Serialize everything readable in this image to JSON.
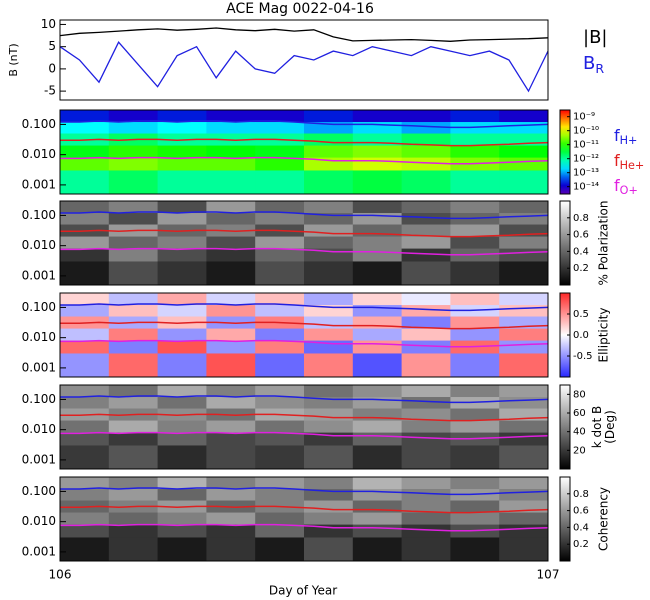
{
  "chart_data": [
    {
      "type": "line",
      "title": "ACE Mag 0022-04-16",
      "ylabel": "B (nT)",
      "x": [
        106,
        106.04,
        106.08,
        106.12,
        106.16,
        106.2,
        106.24,
        106.28,
        106.32,
        106.36,
        106.4,
        106.44,
        106.48,
        106.52,
        106.56,
        106.6,
        106.64,
        106.68,
        106.72,
        106.76,
        106.8,
        106.84,
        106.88,
        106.92,
        106.96,
        107
      ],
      "xlim": [
        106,
        107
      ],
      "ylim": [
        -7,
        11
      ],
      "yticks": [
        -5,
        0,
        5,
        10
      ],
      "series": [
        {
          "name": "|B|",
          "color": "#000000",
          "values": [
            7.5,
            8,
            8.2,
            8.5,
            8.8,
            9,
            8.7,
            8.9,
            9.2,
            8.8,
            8.6,
            8.9,
            8.5,
            8.8,
            7.2,
            6.3,
            6.4,
            6.5,
            6.6,
            6.4,
            6.2,
            6.5,
            6.6,
            6.7,
            6.8,
            7
          ]
        },
        {
          "name": "B",
          "subscript": "R",
          "color": "#2020e0",
          "values": [
            5,
            2,
            -3,
            6,
            1,
            -4,
            3,
            5,
            -2,
            4,
            0,
            -1,
            3,
            2,
            4,
            3,
            5,
            4,
            3,
            5,
            4,
            3,
            4,
            2,
            -5,
            4
          ]
        }
      ]
    },
    {
      "type": "spectrogram",
      "colormap": "rainbow",
      "clog": true,
      "clim": [
        3e-15,
        3e-09
      ],
      "cticks": [
        {
          "value": 1e-09,
          "label": "10⁻⁹"
        },
        {
          "value": 1e-10,
          "label": "10⁻¹⁰"
        },
        {
          "value": 1e-11,
          "label": "10⁻¹¹"
        },
        {
          "value": 1e-12,
          "label": "10⁻¹²"
        },
        {
          "value": 1e-13,
          "label": "10⁻¹³"
        },
        {
          "value": 1e-14,
          "label": "10⁻¹⁴"
        }
      ],
      "clabel": [],
      "z": [
        [
          2e-14,
          1e-14,
          2e-14,
          1e-14,
          1e-14,
          2e-14,
          1e-14,
          1e-14,
          2e-14,
          1e-14
        ],
        [
          3e-13,
          2e-13,
          3e-13,
          2e-13,
          2e-13,
          1e-13,
          2e-13,
          1e-13,
          2e-13,
          2e-13
        ],
        [
          1e-12,
          2e-12,
          1e-12,
          1e-12,
          1e-12,
          2e-12,
          1e-12,
          2e-12,
          1e-12,
          1e-12
        ],
        [
          5e-12,
          1e-11,
          8e-12,
          6e-12,
          5e-12,
          2e-11,
          3e-11,
          2e-11,
          1e-11,
          6e-12
        ],
        [
          2e-11,
          3e-11,
          2e-11,
          2e-11,
          1e-11,
          5e-11,
          8e-11,
          6e-11,
          3e-11,
          2e-11
        ],
        [
          1e-12,
          2e-12,
          1e-12,
          1e-12,
          1e-12,
          2e-12,
          3e-12,
          2e-12,
          1e-12,
          1e-12
        ]
      ]
    },
    {
      "type": "spectrogram",
      "colormap": "gray",
      "clog": false,
      "clim": [
        0,
        1
      ],
      "cticks": [
        0.2,
        0.4,
        0.6,
        0.8
      ],
      "clabel": [
        "% Polarization"
      ],
      "z": [
        [
          0.4,
          0.5,
          0.3,
          0.6,
          0.4,
          0.5,
          0.3,
          0.4,
          0.5,
          0.4
        ],
        [
          0.5,
          0.3,
          0.6,
          0.4,
          0.5,
          0.4,
          0.6,
          0.3,
          0.4,
          0.5
        ],
        [
          0.3,
          0.6,
          0.4,
          0.5,
          0.3,
          0.6,
          0.4,
          0.5,
          0.6,
          0.3
        ],
        [
          0.6,
          0.4,
          0.5,
          0.3,
          0.6,
          0.4,
          0.5,
          0.6,
          0.3,
          0.5
        ],
        [
          0.2,
          0.5,
          0.3,
          0.2,
          0.4,
          0.3,
          0.5,
          0.2,
          0.4,
          0.3
        ],
        [
          0.1,
          0.3,
          0.2,
          0.1,
          0.3,
          0.2,
          0.1,
          0.3,
          0.2,
          0.1
        ]
      ]
    },
    {
      "type": "spectrogram",
      "colormap": "bwr",
      "clog": false,
      "clim": [
        -1,
        1
      ],
      "cticks": [
        0.5,
        {
          "value": 0,
          "label": "0.0"
        },
        -0.5
      ],
      "clabel": [
        "Ellipticity"
      ],
      "z": [
        [
          0.2,
          -0.3,
          0.4,
          -0.2,
          0.3,
          -0.4,
          0.2,
          -0.1,
          0.3,
          -0.2
        ],
        [
          -0.4,
          0.3,
          -0.2,
          0.5,
          -0.3,
          0.2,
          -0.5,
          0.4,
          -0.2,
          0.3
        ],
        [
          0.5,
          -0.4,
          0.3,
          -0.5,
          0.6,
          -0.3,
          0.4,
          -0.6,
          0.5,
          -0.4
        ],
        [
          -0.3,
          0.6,
          -0.5,
          0.4,
          -0.6,
          0.5,
          -0.4,
          0.3,
          -0.5,
          0.6
        ],
        [
          0.7,
          -0.6,
          0.8,
          -0.5,
          0.6,
          -0.7,
          0.5,
          -0.6,
          0.7,
          -0.5
        ],
        [
          -0.5,
          0.7,
          -0.6,
          0.8,
          -0.7,
          0.6,
          -0.8,
          0.5,
          -0.6,
          0.7
        ]
      ]
    },
    {
      "type": "spectrogram",
      "colormap": "gray",
      "clog": false,
      "clim": [
        0,
        90
      ],
      "cticks": [
        20,
        40,
        60,
        80
      ],
      "clabel": [
        "k dot B",
        "(Deg)"
      ],
      "z": [
        [
          50,
          40,
          60,
          45,
          55,
          40,
          50,
          60,
          45,
          55
        ],
        [
          45,
          55,
          40,
          60,
          50,
          45,
          55,
          40,
          60,
          50
        ],
        [
          55,
          45,
          50,
          40,
          60,
          55,
          45,
          50,
          40,
          60
        ],
        [
          40,
          60,
          45,
          55,
          40,
          50,
          60,
          45,
          55,
          40
        ],
        [
          30,
          20,
          35,
          25,
          30,
          20,
          35,
          25,
          30,
          20
        ],
        [
          20,
          30,
          15,
          25,
          20,
          30,
          15,
          25,
          20,
          30
        ]
      ]
    },
    {
      "type": "spectrogram",
      "colormap": "gray",
      "clog": false,
      "clim": [
        0,
        1
      ],
      "cticks": [
        0.2,
        0.4,
        0.6,
        0.8
      ],
      "clabel": [
        "Coherency"
      ],
      "z": [
        [
          0.6,
          0.5,
          0.7,
          0.5,
          0.6,
          0.5,
          0.7,
          0.6,
          0.5,
          0.6
        ],
        [
          0.5,
          0.6,
          0.4,
          0.6,
          0.5,
          0.4,
          0.6,
          0.5,
          0.6,
          0.5
        ],
        [
          0.4,
          0.5,
          0.6,
          0.4,
          0.5,
          0.6,
          0.4,
          0.5,
          0.4,
          0.6
        ],
        [
          0.5,
          0.4,
          0.5,
          0.6,
          0.4,
          0.5,
          0.6,
          0.4,
          0.5,
          0.4
        ],
        [
          0.3,
          0.2,
          0.3,
          0.2,
          0.4,
          0.2,
          0.3,
          0.2,
          0.3,
          0.2
        ],
        [
          0.1,
          0.2,
          0.1,
          0.2,
          0.1,
          0.3,
          0.1,
          0.2,
          0.1,
          0.2
        ]
      ]
    }
  ],
  "spectrogram_axis": {
    "ylim": [
      0.0005,
      0.3
    ],
    "log": true,
    "yticks": [
      {
        "value": 0.001,
        "label": "0.001"
      },
      {
        "value": 0.01,
        "label": "0.010"
      },
      {
        "value": 0.1,
        "label": "0.100"
      }
    ],
    "time_bins": [
      106,
      106.1,
      106.2,
      106.3,
      106.4,
      106.5,
      106.6,
      106.7,
      106.8,
      106.9,
      107
    ],
    "freq_bins": [
      0.3,
      0.12,
      0.05,
      0.02,
      0.008,
      0.003,
      0.0005
    ]
  },
  "frequencies": {
    "x": [
      106,
      106.04,
      106.08,
      106.12,
      106.16,
      106.2,
      106.24,
      106.28,
      106.32,
      106.36,
      106.4,
      106.44,
      106.48,
      106.52,
      106.56,
      106.6,
      106.64,
      106.68,
      106.72,
      106.76,
      106.8,
      106.84,
      106.88,
      106.92,
      106.96,
      107
    ],
    "series": [
      {
        "name": "f",
        "subscript": "H+",
        "color": "#2020e0",
        "values": [
          0.12,
          0.12,
          0.13,
          0.12,
          0.13,
          0.13,
          0.12,
          0.13,
          0.13,
          0.12,
          0.13,
          0.13,
          0.12,
          0.11,
          0.1,
          0.1,
          0.1,
          0.095,
          0.09,
          0.085,
          0.08,
          0.08,
          0.085,
          0.09,
          0.095,
          0.1
        ]
      },
      {
        "name": "f",
        "subscript": "He+",
        "color": "#e02020",
        "values": [
          0.03,
          0.03,
          0.032,
          0.03,
          0.032,
          0.032,
          0.03,
          0.032,
          0.032,
          0.03,
          0.032,
          0.032,
          0.03,
          0.028,
          0.025,
          0.025,
          0.025,
          0.024,
          0.022,
          0.021,
          0.02,
          0.02,
          0.021,
          0.022,
          0.024,
          0.025
        ]
      },
      {
        "name": "f",
        "subscript": "O+",
        "color": "#e020e0",
        "values": [
          0.0075,
          0.0075,
          0.008,
          0.0075,
          0.008,
          0.008,
          0.0075,
          0.008,
          0.008,
          0.0075,
          0.008,
          0.008,
          0.0075,
          0.007,
          0.0063,
          0.0063,
          0.0063,
          0.006,
          0.0056,
          0.0053,
          0.005,
          0.005,
          0.0053,
          0.0056,
          0.006,
          0.0063
        ]
      }
    ]
  },
  "xaxis": {
    "label": "Day of Year",
    "xticks": [
      106,
      107
    ]
  }
}
